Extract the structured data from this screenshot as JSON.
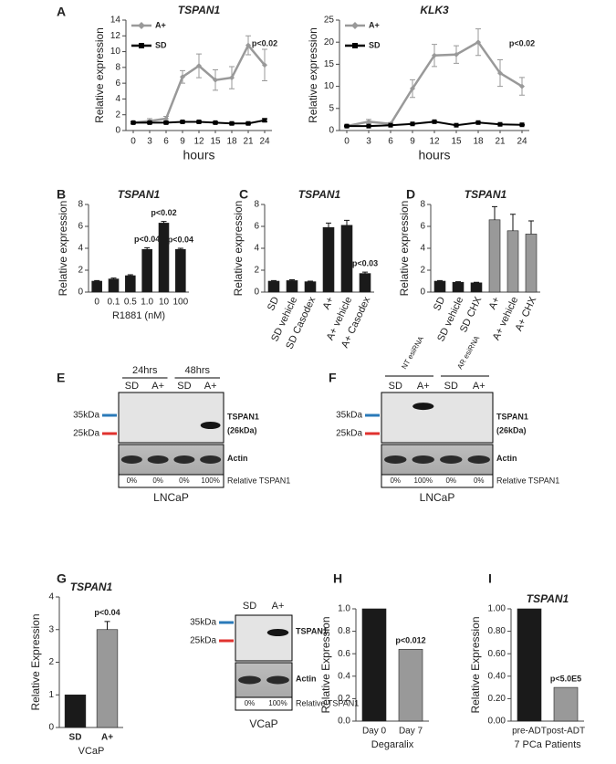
{
  "panels": [
    "A",
    "B",
    "C",
    "D",
    "E",
    "F",
    "G",
    "H",
    "I"
  ],
  "chart_data": [
    {
      "type": "line",
      "title": "TSPAN1",
      "xlabel": "hours",
      "ylabel": "Relative expression",
      "x": [
        0,
        3,
        6,
        9,
        12,
        15,
        18,
        21,
        24
      ],
      "xlim": [
        0,
        24
      ],
      "xticks": [
        0,
        3,
        6,
        9,
        12,
        15,
        18,
        21,
        24
      ],
      "ylim": [
        0,
        14
      ],
      "yticks": [
        0,
        2,
        4,
        6,
        8,
        10,
        12,
        14
      ],
      "legend": "upper left",
      "series": [
        {
          "name": "A+",
          "color": "#999999",
          "values": [
            1,
            1.2,
            1.5,
            6.8,
            8.2,
            6.4,
            6.7,
            10.8,
            8.3
          ],
          "errors": [
            0.1,
            0.3,
            0.3,
            0.8,
            1.5,
            1.3,
            1.4,
            1.2,
            2
          ]
        },
        {
          "name": "SD",
          "color": "#000000",
          "values": [
            1,
            1,
            1,
            1.1,
            1.1,
            1,
            0.9,
            0.9,
            1.3
          ],
          "errors": [
            0.1,
            0.1,
            0.1,
            0.1,
            0.1,
            0.1,
            0.1,
            0.1,
            0.2
          ]
        }
      ],
      "annotations": [
        {
          "text": "p<0.02",
          "x": 24
        }
      ]
    },
    {
      "type": "line",
      "title": "KLK3",
      "xlabel": "hours",
      "ylabel": "Relative expression",
      "x": [
        0,
        3,
        6,
        9,
        12,
        15,
        18,
        21,
        24
      ],
      "xlim": [
        0,
        24
      ],
      "xticks": [
        0,
        3,
        6,
        9,
        12,
        15,
        18,
        21,
        24
      ],
      "ylim": [
        0,
        25
      ],
      "yticks": [
        0,
        5,
        10,
        15,
        20,
        25
      ],
      "legend": "upper left",
      "series": [
        {
          "name": "A+",
          "color": "#999999",
          "values": [
            1,
            2,
            1.5,
            9.5,
            17,
            17.2,
            20,
            13,
            10
          ],
          "errors": [
            0.3,
            0.5,
            0.3,
            2,
            2.5,
            2,
            3,
            3,
            2
          ]
        },
        {
          "name": "SD",
          "color": "#000000",
          "values": [
            1,
            1,
            1.2,
            1.5,
            2,
            1.2,
            1.8,
            1.4,
            1.3
          ],
          "errors": [
            0.1,
            0.1,
            0.1,
            0.1,
            0.1,
            0.1,
            0.1,
            0.1,
            0.1
          ]
        }
      ],
      "annotations": [
        {
          "text": "p<0.02",
          "x": 24
        }
      ]
    },
    {
      "type": "bar",
      "title": "TSPAN1",
      "xlabel": "R1881 (nM)",
      "ylabel": "Relative expression",
      "categories": [
        "0",
        "0.1",
        "0.5",
        "1.0",
        "10",
        "100"
      ],
      "values": [
        1,
        1.2,
        1.5,
        3.9,
        6.3,
        3.9
      ],
      "errors": [
        0.05,
        0.08,
        0.08,
        0.15,
        0.15,
        0.1
      ],
      "colors": [
        "#1a1a1a",
        "#1a1a1a",
        "#1a1a1a",
        "#1a1a1a",
        "#1a1a1a",
        "#1a1a1a"
      ],
      "ylim": [
        0,
        8
      ],
      "yticks": [
        0,
        2,
        4,
        6,
        8
      ],
      "annotations": [
        {
          "text": "p<0.04",
          "category": "1.0"
        },
        {
          "text": "p<0.02",
          "category": "10"
        },
        {
          "text": "p<0.04",
          "category": "100"
        }
      ]
    },
    {
      "type": "bar",
      "title": "TSPAN1",
      "ylabel": "Relative expression",
      "categories": [
        "SD",
        "SD vehicle",
        "SD Casodex",
        "A+",
        "A+ vehicle",
        "A+ Casodex"
      ],
      "values": [
        1,
        1.05,
        0.95,
        5.9,
        6.1,
        1.7
      ],
      "errors": [
        0.05,
        0.08,
        0.05,
        0.4,
        0.45,
        0.12
      ],
      "colors": [
        "#1a1a1a",
        "#1a1a1a",
        "#1a1a1a",
        "#1a1a1a",
        "#1a1a1a",
        "#1a1a1a"
      ],
      "ylim": [
        0,
        8
      ],
      "yticks": [
        0,
        2,
        4,
        6,
        8
      ],
      "annotations": [
        {
          "text": "p<0.03",
          "category": "A+ Casodex"
        }
      ]
    },
    {
      "type": "bar",
      "title": "TSPAN1",
      "ylabel": "Relative expression",
      "categories": [
        "SD",
        "SD vehicle",
        "SD CHX",
        "A+",
        "A+ vehicle",
        "A+ CHX"
      ],
      "values": [
        1,
        0.9,
        0.85,
        6.6,
        5.6,
        5.3
      ],
      "errors": [
        0.05,
        0.05,
        0.05,
        1.2,
        1.5,
        1.2
      ],
      "colors": [
        "#1a1a1a",
        "#1a1a1a",
        "#1a1a1a",
        "#999999",
        "#999999",
        "#999999"
      ],
      "ylim": [
        0,
        8
      ],
      "yticks": [
        0,
        2,
        4,
        6,
        8
      ],
      "annotations": []
    },
    {
      "type": "bar",
      "title": "TSPAN1",
      "xlabel": "VCaP",
      "ylabel": "Relative Expression",
      "categories": [
        "SD",
        "A+"
      ],
      "values": [
        1,
        3.0
      ],
      "errors": [
        0,
        0.25
      ],
      "colors": [
        "#1a1a1a",
        "#999999"
      ],
      "ylim": [
        0,
        4
      ],
      "yticks": [
        0,
        1,
        2,
        3,
        4
      ],
      "annotations": [
        {
          "text": "p<0.04",
          "category": "A+"
        }
      ]
    },
    {
      "type": "bar",
      "xlabel": "Degaralix",
      "ylabel": "Relative Expression",
      "categories": [
        "Day 0",
        "Day 7"
      ],
      "values": [
        1.0,
        0.64
      ],
      "errors": [
        0,
        0
      ],
      "colors": [
        "#1a1a1a",
        "#999999"
      ],
      "ylim": [
        0,
        1.0
      ],
      "yticks": [
        {
          "value": 0,
          "label": "0.0"
        },
        0.2,
        0.4,
        0.6,
        0.8,
        {
          "value": 1,
          "label": "1.0"
        }
      ],
      "annotations": [
        {
          "text": "p<0.012",
          "category": "Day 7"
        }
      ]
    },
    {
      "type": "bar",
      "title": "TSPAN1",
      "xlabel": "7 PCa Patients",
      "ylabel": "Relative Expression",
      "categories": [
        "pre-ADT",
        "post-ADT"
      ],
      "values": [
        1.0,
        0.3
      ],
      "errors": [
        0,
        0
      ],
      "colors": [
        "#1a1a1a",
        "#999999"
      ],
      "ylim": [
        0,
        1.0
      ],
      "yticks": [
        {
          "value": 0,
          "label": "0.00"
        },
        {
          "value": 0.2,
          "label": "0.20"
        },
        {
          "value": 0.4,
          "label": "0.40"
        },
        {
          "value": 0.6,
          "label": "0.60"
        },
        {
          "value": 0.8,
          "label": "0.80"
        },
        {
          "value": 1,
          "label": "1.00"
        }
      ],
      "annotations": [
        {
          "text": "p<5.0E5",
          "category": "post-ADT"
        }
      ]
    }
  ],
  "blots": [
    {
      "groups": [
        "24hrs",
        "48hrs"
      ],
      "lanes": [
        "SD",
        "A+",
        "SD",
        "A+"
      ],
      "markers": [
        "35kDa",
        "25kDa"
      ],
      "labels": [
        "TSPAN1",
        "(26kDa)",
        "Actin"
      ],
      "percentages": [
        "0%",
        "0%",
        "0%",
        "100%"
      ],
      "quant_label": "Relative TSPAN1",
      "cell_line": "LNCaP"
    },
    {
      "groups": [
        "NT esiRNA",
        "AR esiRNA"
      ],
      "lanes": [
        "SD",
        "A+",
        "SD",
        "A+"
      ],
      "markers": [
        "35kDa",
        "25kDa"
      ],
      "labels": [
        "TSPAN1",
        "(26kDa)",
        "Actin"
      ],
      "percentages": [
        "0%",
        "100%",
        "0%",
        "0%"
      ],
      "quant_label": "Relative TSPAN1",
      "cell_line": "LNCaP"
    },
    {
      "groups": [],
      "lanes": [
        "SD",
        "A+"
      ],
      "markers": [
        "35kDa",
        "25kDa"
      ],
      "labels": [
        "TSPAN1",
        "Actin"
      ],
      "percentages": [
        "0%",
        "100%"
      ],
      "quant_label": "Relative TSPAN1",
      "cell_line": "VCaP"
    }
  ]
}
